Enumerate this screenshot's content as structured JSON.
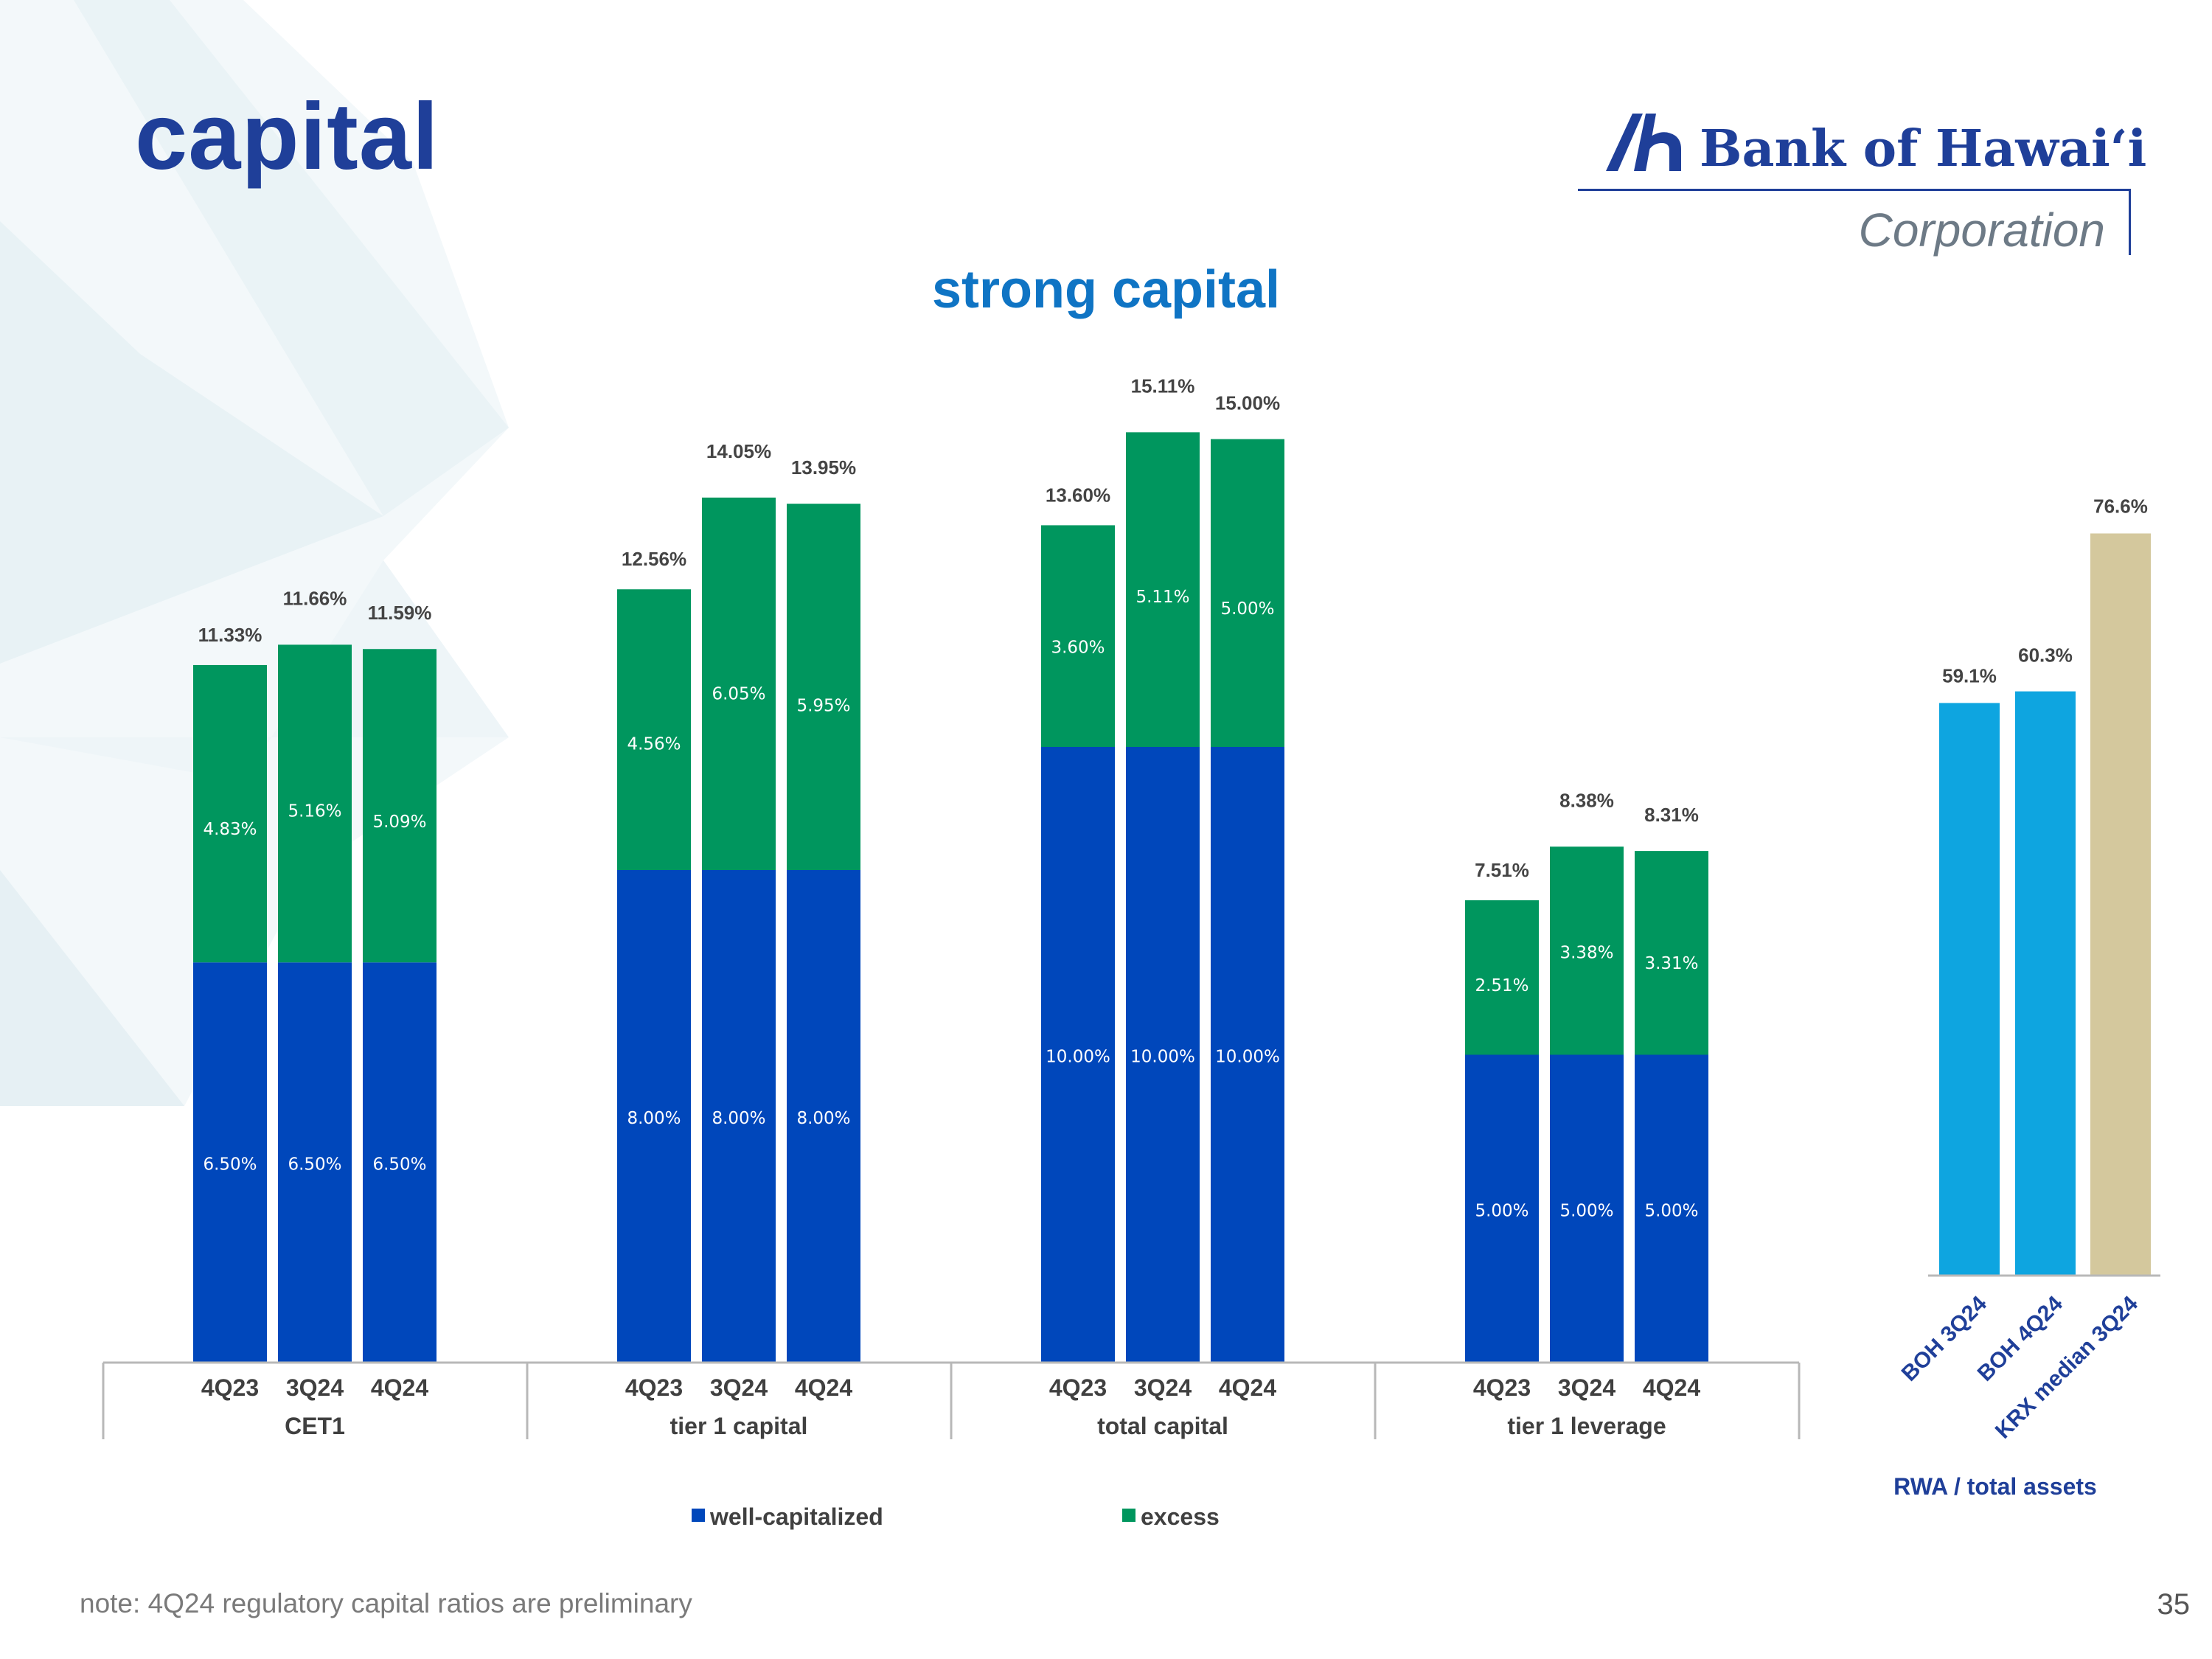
{
  "page": {
    "title": "capital",
    "footnote": "note: 4Q24 regulatory capital ratios are preliminary",
    "page_number": "35"
  },
  "logo": {
    "name": "Bank of Hawai‘i",
    "subtitle": "Corporation"
  },
  "colors": {
    "title": "#1f3f99",
    "chart_title": "#0f74c4",
    "well_capitalized": "#0047bb",
    "excess": "#00965e",
    "boh": "#0ea5e0",
    "krx": "#d4c89d"
  },
  "chart_data": [
    {
      "type": "bar",
      "stacked": true,
      "title": "strong capital",
      "categories": [
        "4Q23",
        "3Q24",
        "4Q24"
      ],
      "groups": [
        "CET1",
        "tier 1 capital",
        "total capital",
        "tier 1 leverage"
      ],
      "series": [
        {
          "name": "well-capitalized",
          "values": [
            [
              6.5,
              6.5,
              6.5
            ],
            [
              8.0,
              8.0,
              8.0
            ],
            [
              10.0,
              10.0,
              10.0
            ],
            [
              5.0,
              5.0,
              5.0
            ]
          ],
          "labels": [
            [
              "6.50%",
              "6.50%",
              "6.50%"
            ],
            [
              "8.00%",
              "8.00%",
              "8.00%"
            ],
            [
              "10.00%",
              "10.00%",
              "10.00%"
            ],
            [
              "5.00%",
              "5.00%",
              "5.00%"
            ]
          ]
        },
        {
          "name": "excess",
          "values": [
            [
              4.83,
              5.16,
              5.09
            ],
            [
              4.56,
              6.05,
              5.95
            ],
            [
              3.6,
              5.11,
              5.0
            ],
            [
              2.51,
              3.38,
              3.31
            ]
          ],
          "labels": [
            [
              "4.83%",
              "5.16%",
              "5.09%"
            ],
            [
              "4.56%",
              "6.05%",
              "5.95%"
            ],
            [
              "3.60%",
              "5.11%",
              "5.00%"
            ],
            [
              "2.51%",
              "3.38%",
              "3.31%"
            ]
          ]
        }
      ],
      "totals": [
        [
          "11.33%",
          "11.66%",
          "11.59%"
        ],
        [
          "12.56%",
          "14.05%",
          "13.95%"
        ],
        [
          "13.60%",
          "15.11%",
          "15.00%"
        ],
        [
          "7.51%",
          "8.38%",
          "8.31%"
        ]
      ],
      "ylim": [
        0,
        16
      ],
      "legend": "bottom",
      "grid": false
    },
    {
      "type": "bar",
      "xlabel": "RWA / total assets",
      "categories": [
        "BOH 3Q24",
        "BOH 4Q24",
        "KRX median 3Q24"
      ],
      "values": [
        59.1,
        60.3,
        76.6
      ],
      "labels": [
        "59.1%",
        "60.3%",
        "76.6%"
      ],
      "ylim": [
        0,
        80
      ],
      "grid": false
    }
  ]
}
